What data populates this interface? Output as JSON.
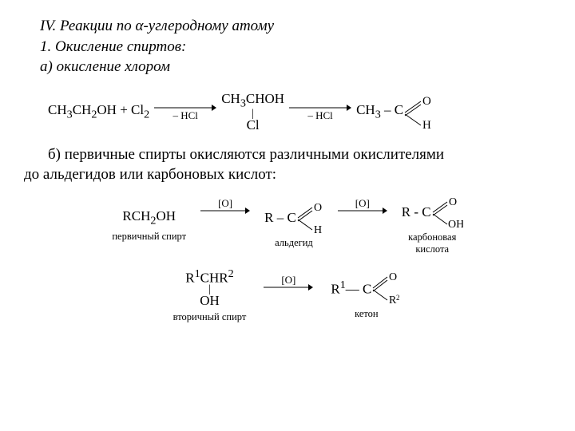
{
  "heading": {
    "line1_prefix": "IV. Реакции по ",
    "line1_alpha": "α",
    "line1_suffix": "-углеродному атому",
    "line2": "1. Окисление спиртов:",
    "line3": "а) окисление хлором"
  },
  "rxn1": {
    "reagent1_html": "CH<sub>3</sub>CH<sub>2</sub>OH + Cl<sub>2</sub>",
    "arrow1_below": "– HCl",
    "intermediate_top_html": "CH<sub>3</sub>CHOH",
    "intermediate_bot": "Cl",
    "arrow2_below": "– HCl",
    "product_left_html": "CH<sub>3</sub> – C",
    "product_top": "O",
    "product_bot": "H",
    "arrow_length": 78,
    "arrow_color": "#000000"
  },
  "body": {
    "line1": "б) первичные спирты окисляются различными окислителями",
    "line2": "до альдегидов или карбоновых кислот:"
  },
  "rxn2": {
    "start_html": "RCH<sub>2</sub>OH",
    "start_caption": "первичный спирт",
    "arrow_above": "[O]",
    "mid_left": "R – C",
    "mid_top": "O",
    "mid_bot": "H",
    "mid_caption": "альдегид",
    "end_left": "R - C",
    "end_top": "O",
    "end_bot": "OH",
    "end_caption": "карбоновая\nкислота",
    "arrow_length": 62,
    "arrow_color": "#000000"
  },
  "rxn3": {
    "start_top_html": "R<sup>1</sup>CHR<sup>2</sup>",
    "start_bot": "OH",
    "start_caption": "вторичный спирт",
    "arrow_above": "[O]",
    "prod_left_html": "R<sup>1</sup>— C",
    "prod_top": "O",
    "prod_bot_html": "R<sup>2</sup>",
    "prod_caption": "кетон",
    "arrow_length": 62,
    "arrow_color": "#000000"
  },
  "style": {
    "font_family": "Times New Roman",
    "heading_fontsize": 19,
    "body_fontsize": 19,
    "formula_fontsize": 17,
    "caption_fontsize": 12.5,
    "background": "#ffffff",
    "text_color": "#000000"
  }
}
